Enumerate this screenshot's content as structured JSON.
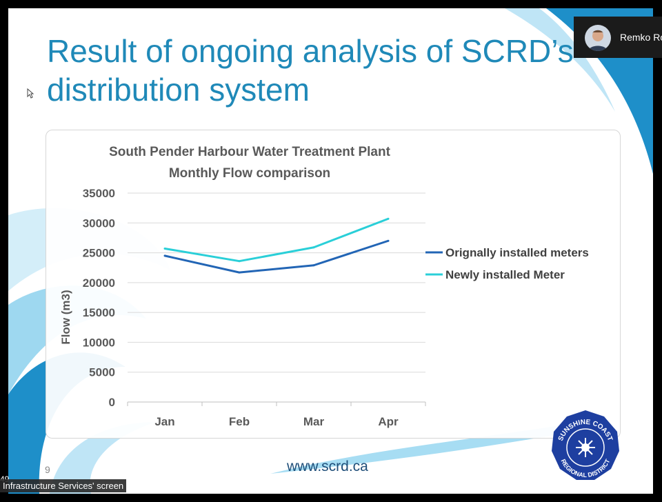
{
  "slide": {
    "title_line1": "Result of ongoing analysis of SCRD’s",
    "title_line2": "distribution system",
    "page_number": "9",
    "website": "www.scrd.ca",
    "logo": {
      "arc_text_top": "SUNSHINE COAST",
      "arc_text_bottom": "REGIONAL DISTRICT",
      "color": "#1E3FA0"
    },
    "colors": {
      "title": "#1F89B8",
      "swoosh_dark": "#1E8FC9",
      "swoosh_light": "#CDEBF8"
    }
  },
  "presenter": {
    "name": "Remko Ro"
  },
  "screen_share": {
    "label": "Infrastructure Services' screen",
    "timer": "49"
  },
  "chart_data": {
    "type": "line",
    "title": "South Pender Harbour Water Treatment Plant",
    "subtitle": "Monthly Flow comparison",
    "categories": [
      "Jan",
      "Feb",
      "Mar",
      "Apr"
    ],
    "ylabel": "Flow (m3)",
    "xlabel": "",
    "ylim": [
      0,
      35000
    ],
    "yticks": [
      0,
      5000,
      10000,
      15000,
      20000,
      25000,
      30000,
      35000
    ],
    "grid": true,
    "legend_position": "right",
    "series": [
      {
        "name": "Orignally installed meters",
        "values": [
          24500,
          21700,
          22900,
          27000
        ],
        "color": "#2265B5"
      },
      {
        "name": "Newly installed Meter",
        "values": [
          25700,
          23600,
          25900,
          30700
        ],
        "color": "#2ACFD8"
      }
    ]
  }
}
